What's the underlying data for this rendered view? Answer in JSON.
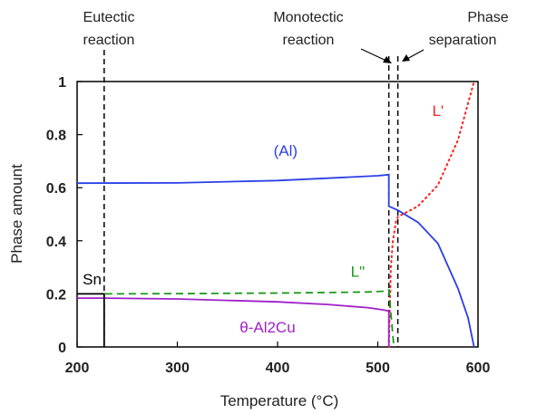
{
  "chart_data": {
    "type": "line",
    "xlabel": "Temperature (°C)",
    "ylabel": "Phase amount",
    "xlim": [
      200,
      600
    ],
    "ylim": [
      0,
      1
    ],
    "x_ticks": [
      "200",
      "300",
      "400",
      "500",
      "600"
    ],
    "y_ticks": [
      "0",
      "0.2",
      "0.4",
      "0.6",
      "0.8",
      "1"
    ],
    "grid": false,
    "annotations": {
      "eutectic": [
        "Eutectic",
        "reaction"
      ],
      "monotectic": [
        "Monotectic",
        "reaction"
      ],
      "phase_sep": [
        "Phase",
        "separation"
      ]
    },
    "reference_lines": [
      {
        "name": "eutectic",
        "x": 227
      },
      {
        "name": "monotectic",
        "x": 511
      },
      {
        "name": "phase-separation",
        "x": 520
      }
    ],
    "series": [
      {
        "name": "(Al)",
        "color": "#2b3fe6",
        "style": "solid",
        "points": [
          [
            200,
            0.617
          ],
          [
            300,
            0.618
          ],
          [
            400,
            0.627
          ],
          [
            450,
            0.636
          ],
          [
            500,
            0.645
          ],
          [
            511,
            0.649
          ],
          [
            511,
            0.53
          ],
          [
            520,
            0.515
          ],
          [
            540,
            0.47
          ],
          [
            560,
            0.39
          ],
          [
            580,
            0.22
          ],
          [
            590,
            0.11
          ],
          [
            596,
            0.0
          ]
        ]
      },
      {
        "name": "L'",
        "color": "#ff2020",
        "style": "dotted",
        "points": [
          [
            511,
            0.0
          ],
          [
            513,
            0.3
          ],
          [
            515,
            0.4
          ],
          [
            518,
            0.47
          ],
          [
            520,
            0.49
          ],
          [
            540,
            0.53
          ],
          [
            560,
            0.61
          ],
          [
            580,
            0.78
          ],
          [
            596,
            1.0
          ]
        ]
      },
      {
        "name": "L\"",
        "color": "#1a9a1a",
        "style": "dashed",
        "points": [
          [
            228,
            0.2
          ],
          [
            300,
            0.201
          ],
          [
            400,
            0.203
          ],
          [
            450,
            0.205
          ],
          [
            490,
            0.207
          ],
          [
            505,
            0.21
          ],
          [
            511,
            0.215
          ],
          [
            516,
            0.0
          ]
        ]
      },
      {
        "name": "θ-Al2Cu",
        "color": "#a020c8",
        "style": "solid",
        "points": [
          [
            200,
            0.184
          ],
          [
            227,
            0.184
          ],
          [
            300,
            0.181
          ],
          [
            400,
            0.17
          ],
          [
            450,
            0.16
          ],
          [
            490,
            0.148
          ],
          [
            505,
            0.14
          ],
          [
            511,
            0.135
          ],
          [
            511,
            0.0
          ]
        ]
      },
      {
        "name": "Sn",
        "color": "#000000",
        "style": "solid",
        "points": [
          [
            200,
            0.2
          ],
          [
            227,
            0.2
          ],
          [
            227,
            0.0
          ]
        ]
      }
    ],
    "series_labels": [
      {
        "text": "(Al)",
        "color": "#2b3fe6",
        "x": 408,
        "y": 0.72
      },
      {
        "text": "L'",
        "color": "#ff2020",
        "x": 560,
        "y": 0.87
      },
      {
        "text": "L\"",
        "color": "#1a9a1a",
        "x": 480,
        "y": 0.265
      },
      {
        "text": "θ-Al2Cu",
        "color": "#a020c8",
        "x": 390,
        "y": 0.055
      },
      {
        "text": "Sn",
        "color": "#000000",
        "x": 215,
        "y": 0.235
      }
    ]
  }
}
